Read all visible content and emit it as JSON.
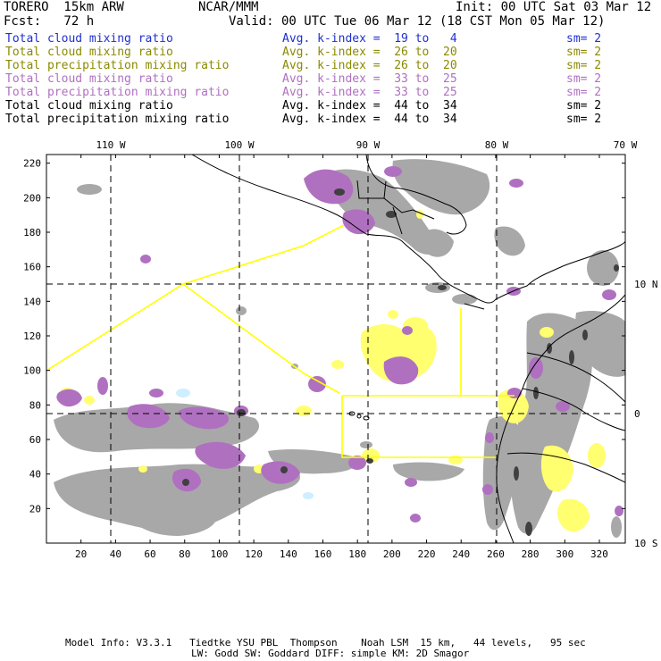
{
  "header": {
    "model": "TORERO  15km ARW",
    "center": "NCAR/MMM",
    "init": "Init: 00 UTC Sat 03 Mar 12",
    "fcst": "Fcst:   72 h",
    "valid": "Valid: 00 UTC Tue 06 Mar 12 (18 CST Mon 05 Mar 12)"
  },
  "legend": [
    {
      "field": "Total cloud mixing ratio",
      "kindex": "Avg. k-index =  19 to   4",
      "sm": "sm= 2",
      "color": "#1f2fd0"
    },
    {
      "field": "Total cloud mixing ratio",
      "kindex": "Avg. k-index =  26 to  20",
      "sm": "sm= 2",
      "color": "#8a8a00"
    },
    {
      "field": "Total precipitation mixing ratio",
      "kindex": "Avg. k-index =  26 to  20",
      "sm": "sm= 2",
      "color": "#8a8a00"
    },
    {
      "field": "Total cloud mixing ratio",
      "kindex": "Avg. k-index =  33 to  25",
      "sm": "sm= 2",
      "color": "#b070c0"
    },
    {
      "field": "Total precipitation mixing ratio",
      "kindex": "Avg. k-index =  33 to  25",
      "sm": "sm= 2",
      "color": "#b070c0"
    },
    {
      "field": "Total cloud mixing ratio",
      "kindex": "Avg. k-index =  44 to  34",
      "sm": "sm= 2",
      "color": "#000000"
    },
    {
      "field": "Total precipitation mixing ratio",
      "kindex": "Avg. k-index =  44 to  34",
      "sm": "sm= 2",
      "color": "#000000"
    }
  ],
  "map": {
    "lon_labels": [
      "110 W",
      "100 W",
      "90 W",
      "80 W",
      "70 W"
    ],
    "lat_labels": [
      "10 N",
      "0",
      "10 S"
    ],
    "x_ticks": [
      20,
      40,
      60,
      80,
      100,
      120,
      140,
      160,
      180,
      200,
      220,
      240,
      260,
      280,
      300,
      320
    ],
    "y_ticks": [
      20,
      40,
      60,
      80,
      100,
      120,
      140,
      160,
      180,
      200,
      220
    ],
    "x_range": [
      0,
      335
    ],
    "y_range": [
      0,
      225
    ],
    "colors": {
      "cloud_gray": "#a8a8a8",
      "dark_core": "#404040",
      "purple": "#b070c0",
      "yellow": "#ffff70",
      "light_blue": "#cfeeff",
      "domain_outline": "#ffff00"
    }
  },
  "footer": {
    "line1": "Model Info: V3.3.1   Tiedtke YSU PBL  Thompson    Noah LSM  15 km,   44 levels,   95 sec",
    "line2": "LW: Godd SW: Goddard DIFF: simple KM: 2D Smagor"
  }
}
